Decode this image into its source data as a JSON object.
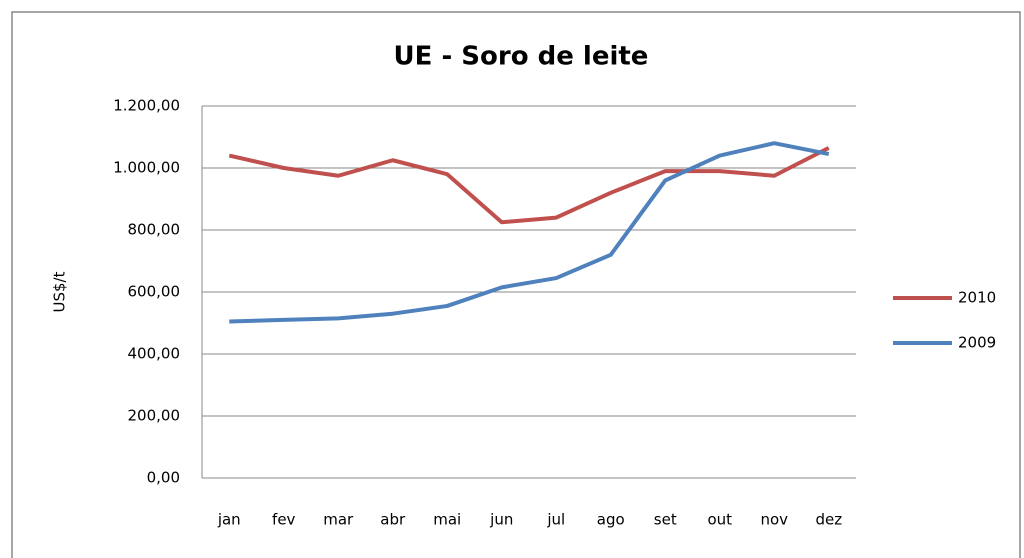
{
  "chart_data": {
    "type": "line",
    "title": "UE - Soro de leite",
    "y_label": "US$/t",
    "categories": [
      "jan",
      "fev",
      "mar",
      "abr",
      "mai",
      "jun",
      "jul",
      "ago",
      "set",
      "out",
      "nov",
      "dez"
    ],
    "series": [
      {
        "name": "2010",
        "color": "#c0504d",
        "values": [
          1040,
          1000,
          975,
          1025,
          980,
          825,
          840,
          920,
          990,
          990,
          975,
          1065
        ]
      },
      {
        "name": "2009",
        "color": "#4f81bd",
        "values": [
          505,
          510,
          515,
          530,
          555,
          615,
          645,
          720,
          960,
          1040,
          1080,
          1045
        ]
      }
    ],
    "ylim": [
      0,
      1200
    ],
    "yticks": [
      {
        "value": 0,
        "label": "0,00"
      },
      {
        "value": 200,
        "label": "200,00"
      },
      {
        "value": 400,
        "label": "400,00"
      },
      {
        "value": 600,
        "label": "600,00"
      },
      {
        "value": 800,
        "label": "800,00"
      },
      {
        "value": 1000,
        "label": "1.000,00"
      },
      {
        "value": 1200,
        "label": "1.200,00"
      }
    ],
    "grid": true,
    "legend": "right"
  }
}
